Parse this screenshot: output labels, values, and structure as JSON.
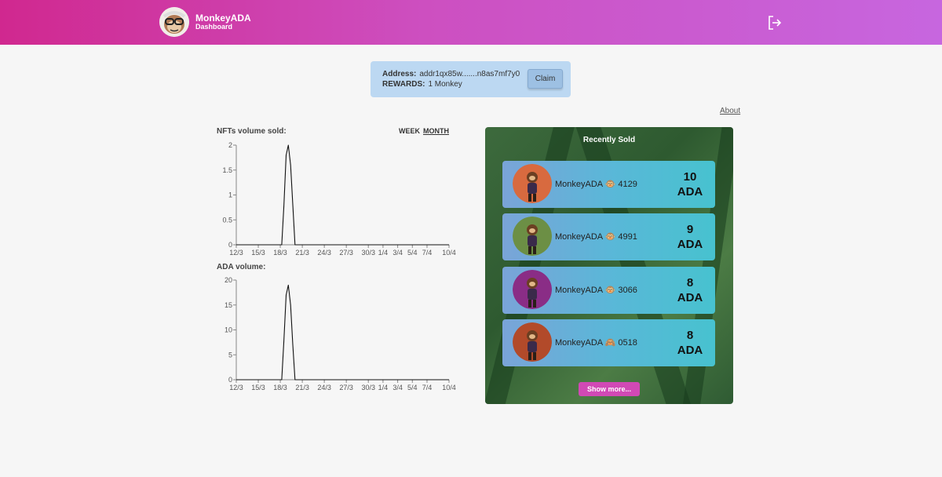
{
  "header": {
    "app_name": "MonkeyADA",
    "subtitle": "Dashboard",
    "logo_icon": "monkey-logo-icon",
    "logout_icon": "logout-icon"
  },
  "wallet": {
    "address_label": "Address:",
    "address_value": "addr1qx85w.......n8as7mf7y0",
    "rewards_label": "REWARDS:",
    "rewards_value": "1 Monkey",
    "claim_label": "Claim"
  },
  "about_label": "About",
  "range_tabs": [
    {
      "label": "WEEK",
      "active": false
    },
    {
      "label": "MONTH",
      "active": true
    }
  ],
  "chart_data": [
    {
      "type": "line",
      "title": "NFTs volume sold:",
      "x_ticks": [
        "12/3",
        "15/3",
        "18/3",
        "21/3",
        "24/3",
        "27/3",
        "30/3",
        "1/4",
        "3/4",
        "5/4",
        "7/4",
        "10/4"
      ],
      "y_ticks": [
        "0",
        "0.5",
        "1",
        "1.5",
        "2"
      ],
      "ylim": [
        0,
        2
      ],
      "xlim": [
        0,
        29
      ],
      "series": [
        {
          "x": [
            0,
            6.2,
            6.5,
            6.8,
            7.1,
            7.4,
            7.7,
            8.0,
            8.3,
            29
          ],
          "values": [
            0,
            0,
            0.8,
            1.8,
            2.0,
            1.6,
            0.8,
            0,
            0,
            0
          ]
        }
      ]
    },
    {
      "type": "line",
      "title": "ADA volume:",
      "x_ticks": [
        "12/3",
        "15/3",
        "18/3",
        "21/3",
        "24/3",
        "27/3",
        "30/3",
        "1/4",
        "3/4",
        "5/4",
        "7/4",
        "10/4"
      ],
      "y_ticks": [
        "0",
        "5",
        "10",
        "15",
        "20"
      ],
      "ylim": [
        0,
        20
      ],
      "xlim": [
        0,
        29
      ],
      "series": [
        {
          "x": [
            0,
            6.2,
            6.5,
            6.8,
            7.1,
            7.4,
            7.7,
            8.0,
            8.3,
            29
          ],
          "values": [
            0,
            0,
            8,
            17,
            19,
            15,
            7,
            0,
            0,
            0
          ]
        }
      ]
    }
  ],
  "recently_sold": {
    "title": "Recently Sold",
    "items": [
      {
        "name": "MonkeyADA 🐵 4129",
        "amount": "10",
        "unit": "ADA",
        "avatar_bg": "#d86a3f"
      },
      {
        "name": "MonkeyADA 🐵 4991",
        "amount": "9",
        "unit": "ADA",
        "avatar_bg": "#6c8f45"
      },
      {
        "name": "MonkeyADA 🐵 3066",
        "amount": "8",
        "unit": "ADA",
        "avatar_bg": "#8a2d86"
      },
      {
        "name": "MonkeyADA 🙈 0518",
        "amount": "8",
        "unit": "ADA",
        "avatar_bg": "#b24a2a"
      }
    ],
    "show_more_label": "Show more..."
  }
}
